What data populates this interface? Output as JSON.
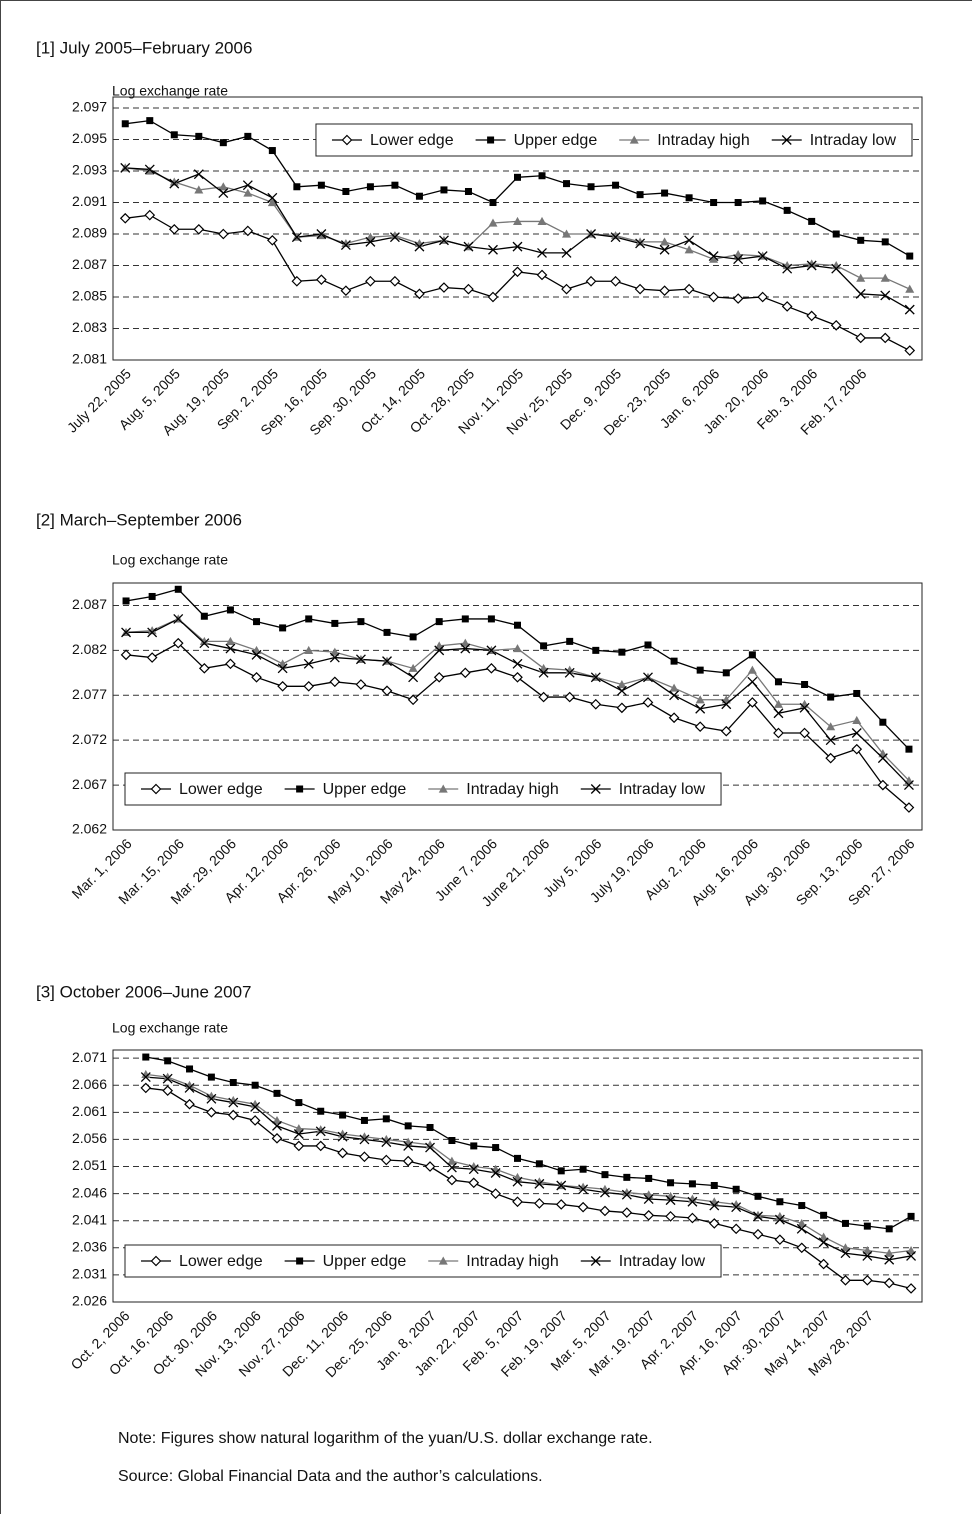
{
  "chart_data": [
    {
      "type": "line",
      "title": "[1] July 2005–February 2006",
      "y_label": "Log exchange rate",
      "categories": [
        "July 22, 2005",
        null,
        "Aug. 5, 2005",
        null,
        "Aug. 19, 2005",
        null,
        "Sep. 2, 2005",
        null,
        "Sep. 16, 2005",
        null,
        "Sep. 30, 2005",
        null,
        "Oct. 14, 2005",
        null,
        "Oct. 28, 2005",
        null,
        "Nov. 11, 2005",
        null,
        "Nov. 25, 2005",
        null,
        "Dec. 9, 2005",
        null,
        "Dec. 23, 2005",
        null,
        "Jan. 6, 2006",
        null,
        "Jan. 20, 2006",
        null,
        "Feb. 3, 2006",
        null,
        "Feb. 17, 2006",
        null,
        null
      ],
      "series": [
        {
          "name": "Lower edge",
          "color": "#000000",
          "marker": "diamond",
          "values": [
            2.09,
            2.0902,
            2.0893,
            2.0893,
            2.089,
            2.0892,
            2.0886,
            2.086,
            2.0861,
            2.0854,
            2.086,
            2.086,
            2.0852,
            2.0856,
            2.0855,
            2.085,
            2.0866,
            2.0864,
            2.0855,
            2.086,
            2.086,
            2.0855,
            2.0854,
            2.0855,
            2.085,
            2.0849,
            2.085,
            2.0844,
            2.0838,
            2.0832,
            2.0824,
            2.0824,
            2.0816
          ]
        },
        {
          "name": "Upper edge",
          "color": "#000000",
          "marker": "square",
          "values": [
            2.096,
            2.0962,
            2.0953,
            2.0952,
            2.0948,
            2.0952,
            2.0943,
            2.092,
            2.0921,
            2.0917,
            2.092,
            2.0921,
            2.0914,
            2.0918,
            2.0917,
            2.091,
            2.0926,
            2.0927,
            2.0922,
            2.092,
            2.0921,
            2.0915,
            2.0916,
            2.0913,
            2.091,
            2.091,
            2.0911,
            2.0905,
            2.0898,
            2.089,
            2.0886,
            2.0885,
            2.0876
          ]
        },
        {
          "name": "Intraday high",
          "color": "#777777",
          "marker": "triangle",
          "values": [
            2.0932,
            2.093,
            2.0923,
            2.0918,
            2.092,
            2.0916,
            2.091,
            2.0888,
            2.0889,
            2.0884,
            2.0888,
            2.0889,
            2.0884,
            2.0886,
            2.0882,
            2.0897,
            2.0898,
            2.0898,
            2.089,
            2.089,
            2.0889,
            2.0885,
            2.0885,
            2.088,
            2.0874,
            2.0877,
            2.0876,
            2.087,
            2.0871,
            2.087,
            2.0862,
            2.0862,
            2.0855
          ]
        },
        {
          "name": "Intraday low",
          "color": "#000000",
          "marker": "x",
          "values": [
            2.0932,
            2.0931,
            2.0922,
            2.0928,
            2.0916,
            2.0921,
            2.0913,
            2.0888,
            2.089,
            2.0883,
            2.0885,
            2.0888,
            2.0882,
            2.0886,
            2.0882,
            2.088,
            2.0882,
            2.0878,
            2.0878,
            2.089,
            2.0888,
            2.0884,
            2.088,
            2.0886,
            2.0876,
            2.0874,
            2.0876,
            2.0868,
            2.087,
            2.0868,
            2.0852,
            2.0851,
            2.0842
          ]
        }
      ],
      "ylim": [
        2.081,
        2.0977
      ],
      "yticks": [
        2.081,
        2.083,
        2.085,
        2.087,
        2.089,
        2.091,
        2.093,
        2.095,
        2.097
      ],
      "grid": true,
      "legend": "upper right"
    },
    {
      "type": "line",
      "title": "[2] March–September 2006",
      "y_label": "Log exchange rate",
      "categories": [
        "Mar. 1, 2006",
        null,
        "Mar. 15, 2006",
        null,
        "Mar. 29, 2006",
        null,
        "Apr. 12, 2006",
        null,
        "Apr. 26, 2006",
        null,
        "May 10, 2006",
        null,
        "May 24, 2006",
        null,
        "June 7, 2006",
        null,
        "June 21, 2006",
        null,
        "July 5, 2006",
        null,
        "July 19, 2006",
        null,
        "Aug. 2, 2006",
        null,
        "Aug. 16, 2006",
        null,
        "Aug. 30, 2006",
        null,
        "Sep. 13, 2006",
        null,
        "Sep. 27, 2006"
      ],
      "series": [
        {
          "name": "Lower edge",
          "color": "#000000",
          "marker": "diamond",
          "values": [
            2.0815,
            2.0812,
            2.0828,
            2.08,
            2.0805,
            2.079,
            2.078,
            2.078,
            2.0785,
            2.0782,
            2.0775,
            2.0765,
            2.079,
            2.0795,
            2.08,
            2.079,
            2.0768,
            2.0768,
            2.076,
            2.0756,
            2.0762,
            2.0745,
            2.0735,
            2.073,
            2.0762,
            2.0728,
            2.0728,
            2.07,
            2.071,
            2.067,
            2.0645
          ]
        },
        {
          "name": "Upper edge",
          "color": "#000000",
          "marker": "square",
          "values": [
            2.0875,
            2.088,
            2.0888,
            2.0858,
            2.0865,
            2.0852,
            2.0845,
            2.0855,
            2.085,
            2.0852,
            2.084,
            2.0835,
            2.0852,
            2.0855,
            2.0855,
            2.0848,
            2.0825,
            2.083,
            2.082,
            2.0818,
            2.0826,
            2.0808,
            2.0798,
            2.0795,
            2.0815,
            2.0785,
            2.0782,
            2.0768,
            2.0772,
            2.074,
            2.071
          ]
        },
        {
          "name": "Intraday high",
          "color": "#777777",
          "marker": "triangle",
          "values": [
            2.084,
            2.0842,
            2.0855,
            2.083,
            2.083,
            2.082,
            2.0805,
            2.082,
            2.0818,
            2.081,
            2.0808,
            2.08,
            2.0825,
            2.0828,
            2.082,
            2.0822,
            2.08,
            2.0798,
            2.079,
            2.0782,
            2.079,
            2.0778,
            2.0765,
            2.0765,
            2.0798,
            2.076,
            2.076,
            2.0735,
            2.0742,
            2.0705,
            2.0675
          ]
        },
        {
          "name": "Intraday low",
          "color": "#000000",
          "marker": "x",
          "values": [
            2.084,
            2.084,
            2.0855,
            2.0828,
            2.0822,
            2.0815,
            2.08,
            2.0805,
            2.0812,
            2.081,
            2.0808,
            2.079,
            2.082,
            2.0822,
            2.082,
            2.0805,
            2.0795,
            2.0795,
            2.079,
            2.0775,
            2.079,
            2.077,
            2.0755,
            2.076,
            2.0785,
            2.075,
            2.0756,
            2.072,
            2.0728,
            2.07,
            2.067
          ]
        }
      ],
      "ylim": [
        2.062,
        2.0895
      ],
      "yticks": [
        2.062,
        2.067,
        2.072,
        2.077,
        2.082,
        2.087
      ],
      "grid": true,
      "legend": "lower left"
    },
    {
      "type": "line",
      "title": "[3] October 2006–June 2007",
      "y_label": "Log exchange rate",
      "categories": [
        "Oct. 2, 2006",
        null,
        "Oct. 16, 2006",
        null,
        "Oct. 30, 2006",
        null,
        "Nov. 13, 2006",
        null,
        "Nov. 27, 2006",
        null,
        "Dec. 11, 2006",
        null,
        "Dec. 25, 2006",
        null,
        "Jan. 8, 2007",
        null,
        "Jan. 22, 2007",
        null,
        "Feb. 5, 2007",
        null,
        "Feb. 19, 2007",
        null,
        "Mar. 5, 2007",
        null,
        "Mar. 19, 2007",
        null,
        "Apr. 2, 2007",
        null,
        "Apr. 16, 2007",
        null,
        "Apr. 30, 2007",
        null,
        "May 14, 2007",
        null,
        "May 28, 2007",
        null,
        null
      ],
      "series": [
        {
          "name": "Lower edge",
          "color": "#000000",
          "marker": "diamond",
          "values": [
            null,
            2.0655,
            2.065,
            2.0625,
            2.061,
            2.0605,
            2.0595,
            2.0562,
            2.0548,
            2.0548,
            2.0535,
            2.0528,
            2.0522,
            2.052,
            2.051,
            2.0485,
            2.048,
            2.046,
            2.0445,
            2.0442,
            2.044,
            2.0435,
            2.0428,
            2.0425,
            2.042,
            2.0418,
            2.0415,
            2.0405,
            2.0395,
            2.0385,
            2.0375,
            2.036,
            2.033,
            2.03,
            2.03,
            2.0295,
            2.0285
          ]
        },
        {
          "name": "Upper edge",
          "color": "#000000",
          "marker": "square",
          "values": [
            null,
            2.0712,
            2.0705,
            2.069,
            2.0675,
            2.0665,
            2.066,
            2.0645,
            2.0628,
            2.0612,
            2.0605,
            2.0595,
            2.0598,
            2.0585,
            2.0582,
            2.0558,
            2.0548,
            2.0545,
            2.0525,
            2.0515,
            2.0502,
            2.0505,
            2.0495,
            2.049,
            2.0488,
            2.048,
            2.0478,
            2.0475,
            2.0468,
            2.0455,
            2.0445,
            2.0438,
            2.042,
            2.0405,
            2.04,
            2.0395,
            2.0418
          ]
        },
        {
          "name": "Intraday high",
          "color": "#777777",
          "marker": "triangle",
          "values": [
            null,
            2.068,
            2.0675,
            2.066,
            2.064,
            2.0632,
            2.0625,
            2.0595,
            2.058,
            2.0578,
            2.057,
            2.0565,
            2.056,
            2.0555,
            2.055,
            2.052,
            2.051,
            2.0505,
            2.049,
            2.0482,
            2.0475,
            2.0472,
            2.0468,
            2.0462,
            2.0458,
            2.0455,
            2.045,
            2.0445,
            2.044,
            2.042,
            2.0418,
            2.0405,
            2.038,
            2.036,
            2.0355,
            2.035,
            2.0355
          ]
        },
        {
          "name": "Intraday low",
          "color": "#000000",
          "marker": "x",
          "values": [
            null,
            2.0675,
            2.0672,
            2.0655,
            2.0635,
            2.0628,
            2.062,
            2.0585,
            2.057,
            2.0575,
            2.0565,
            2.056,
            2.0555,
            2.0548,
            2.0545,
            2.0508,
            2.0505,
            2.0498,
            2.0482,
            2.0478,
            2.0475,
            2.0468,
            2.0462,
            2.0458,
            2.045,
            2.0448,
            2.0445,
            2.0438,
            2.0435,
            2.0418,
            2.0412,
            2.0395,
            2.037,
            2.035,
            2.0345,
            2.0338,
            2.0345
          ]
        }
      ],
      "ylim": [
        2.026,
        2.0725
      ],
      "yticks": [
        2.026,
        2.031,
        2.036,
        2.041,
        2.046,
        2.051,
        2.056,
        2.061,
        2.066,
        2.071
      ],
      "grid": true,
      "legend": "lower left"
    }
  ],
  "note": "Note: Figures show natural logarithm of the yuan/U.S. dollar exchange rate.",
  "source": "Source: Global Financial Data and the author’s calculations."
}
